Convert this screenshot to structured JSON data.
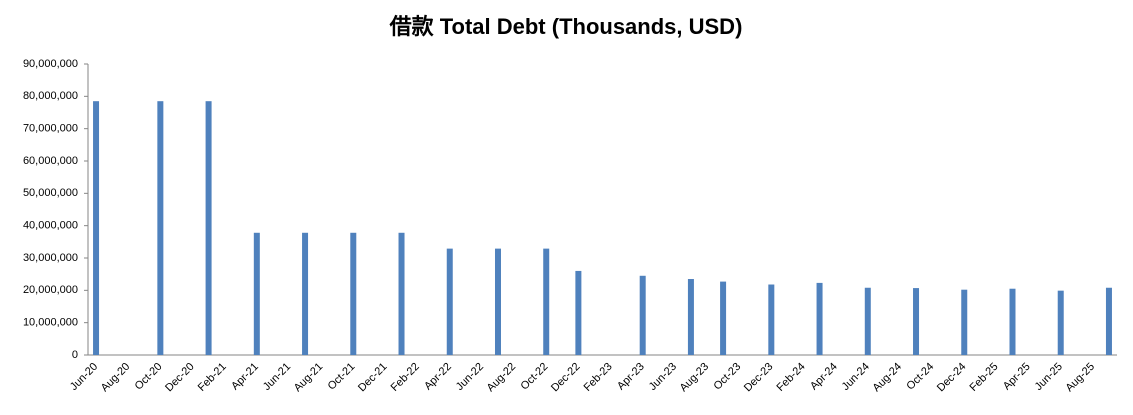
{
  "chart_data": {
    "type": "bar",
    "title": "借款 Total Debt (Thousands, USD)",
    "categories": [
      "Jun-20",
      null,
      "Aug-20",
      null,
      "Oct-20",
      null,
      "Dec-20",
      null,
      "Feb-21",
      null,
      "Apr-21",
      null,
      "Jun-21",
      null,
      "Aug-21",
      null,
      "Oct-21",
      null,
      "Dec-21",
      null,
      "Feb-22",
      null,
      "Apr-22",
      null,
      "Jun-22",
      null,
      "Aug-22",
      null,
      "Oct-22",
      null,
      "Dec-22",
      null,
      "Feb-23",
      null,
      "Apr-23",
      null,
      "Jun-23",
      null,
      "Aug-23",
      null,
      "Oct-23",
      null,
      "Dec-23",
      null,
      "Feb-24",
      null,
      "Apr-24",
      null,
      "Jun-24",
      null,
      "Aug-24",
      null,
      "Oct-24",
      null,
      "Dec-24",
      null,
      "Feb-25",
      null,
      "Apr-25",
      null,
      "Jun-25",
      null,
      "Aug-25",
      null
    ],
    "values": [
      78500000,
      null,
      null,
      null,
      78500000,
      null,
      null,
      78500000,
      null,
      null,
      37800000,
      null,
      null,
      37800000,
      null,
      null,
      37800000,
      null,
      null,
      37800000,
      null,
      null,
      32900000,
      null,
      null,
      32900000,
      null,
      null,
      32900000,
      null,
      26000000,
      null,
      null,
      null,
      24500000,
      null,
      null,
      23500000,
      null,
      22700000,
      null,
      null,
      21800000,
      null,
      null,
      22300000,
      null,
      null,
      20800000,
      null,
      null,
      20700000,
      null,
      null,
      20200000,
      null,
      null,
      20500000,
      null,
      null,
      19900000,
      null,
      null,
      20800000
    ],
    "color": "#4f81bd",
    "ylim": [
      0,
      90000000
    ],
    "yticks": [
      0,
      {
        "value": 10000000,
        "label": "10,000,000"
      },
      {
        "value": 20000000,
        "label": "20,000,000"
      },
      {
        "value": 30000000,
        "label": "30,000,000"
      },
      {
        "value": 40000000,
        "label": "40,000,000"
      },
      {
        "value": 50000000,
        "label": "50,000,000"
      },
      {
        "value": 60000000,
        "label": "60,000,000"
      },
      {
        "value": 70000000,
        "label": "70,000,000"
      },
      {
        "value": 80000000,
        "label": "80,000,000"
      },
      {
        "value": 90000000,
        "label": "90,000,000"
      }
    ],
    "grid": false
  }
}
